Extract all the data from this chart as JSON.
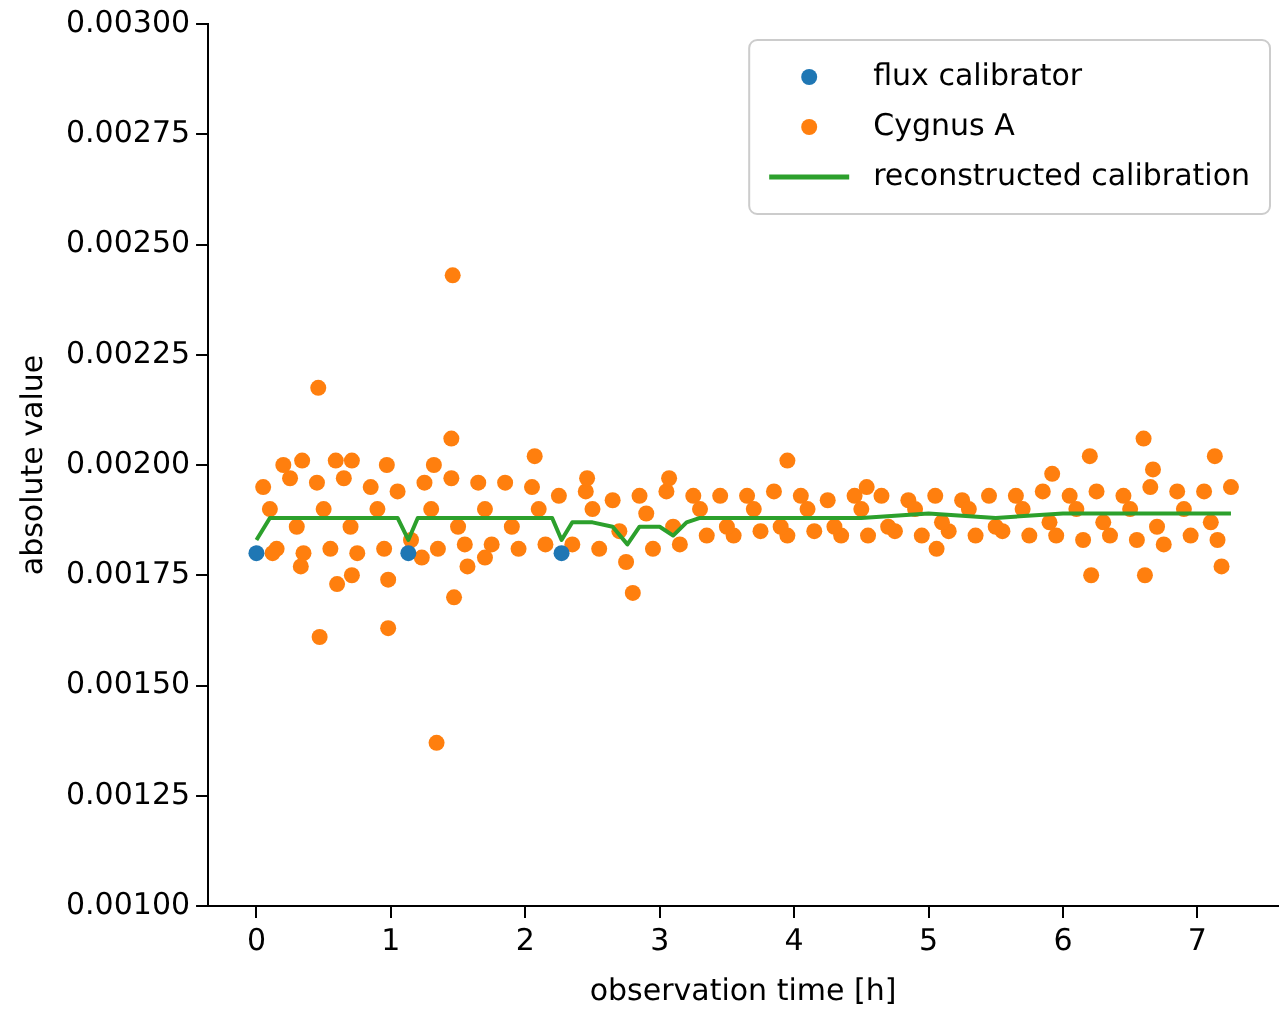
{
  "chart_data": {
    "type": "scatter",
    "xlabel": "observation time [h]",
    "ylabel": "absolute value",
    "xlim": [
      -0.36,
      7.6
    ],
    "xticks": [
      0,
      1,
      2,
      3,
      4,
      5,
      6,
      7
    ],
    "ylim": [
      0.001,
      0.003
    ],
    "yticks": [
      {
        "value": 0.001,
        "label": "0.00100"
      },
      {
        "value": 0.00125,
        "label": "0.00125"
      },
      {
        "value": 0.0015,
        "label": "0.00150"
      },
      {
        "value": 0.00175,
        "label": "0.00175"
      },
      {
        "value": 0.002,
        "label": "0.00200"
      },
      {
        "value": 0.00225,
        "label": "0.00225"
      },
      {
        "value": 0.0025,
        "label": "0.00250"
      },
      {
        "value": 0.00275,
        "label": "0.00275"
      },
      {
        "value": 0.003,
        "label": "0.00300"
      }
    ],
    "grid": false,
    "legend": "top right",
    "series": [
      {
        "name": "flux calibrator",
        "marker": "circle",
        "color": "#1f77b4",
        "x": [
          0,
          1.13,
          2.27
        ],
        "values": [
          0.0018,
          0.0018,
          0.0018
        ]
      },
      {
        "name": "Cygnus A",
        "marker": "circle",
        "color": "#ff7f0e",
        "x": [
          0.05,
          0.25,
          0.45,
          0.65,
          0.85,
          1.05,
          1.25,
          1.45,
          1.65,
          1.85,
          2.05,
          2.25,
          2.45,
          2.65,
          2.85,
          3.05,
          3.25,
          3.45,
          3.65,
          3.85,
          4.05,
          4.25,
          4.45,
          4.65,
          4.85,
          5.05,
          5.25,
          5.45,
          5.65,
          5.85,
          6.05,
          6.25,
          6.45,
          6.65,
          6.85,
          7.05,
          7.25,
          0.15,
          0.35,
          0.55,
          0.75,
          0.95,
          1.15,
          1.35,
          1.55,
          1.75,
          1.95,
          2.15,
          2.35,
          2.55,
          2.75,
          2.95,
          3.15,
          3.35,
          3.55,
          3.75,
          3.95,
          4.15,
          4.35,
          4.55,
          4.75,
          4.95,
          5.15,
          5.35,
          5.55,
          5.75,
          5.95,
          6.15,
          6.35,
          6.55,
          6.75,
          6.95,
          7.15,
          0.1,
          0.5,
          0.9,
          1.3,
          1.7,
          2.1,
          2.5,
          2.9,
          3.3,
          3.7,
          4.1,
          4.5,
          4.9,
          5.3,
          5.7,
          6.1,
          6.5,
          6.9,
          0.3,
          0.7,
          1.5,
          1.9,
          2.7,
          3.1,
          3.5,
          3.9,
          4.3,
          4.7,
          5.1,
          5.5,
          5.9,
          6.3,
          6.7,
          7.1,
          0.46,
          1.46,
          1.45,
          2.07,
          0.47,
          0.98,
          1.47,
          1.34,
          0.33,
          0.6,
          0.71,
          0.98,
          0.2,
          0.34,
          0.59,
          0.71,
          0.97,
          1.32,
          1.7,
          1.57,
          1.23,
          0.12,
          2.8,
          2.46,
          3.07,
          3.95,
          6.6,
          6.2,
          6.67,
          7.13,
          6.21,
          6.61,
          7.18,
          5.06,
          5.92,
          4.54
        ],
        "values": [
          0.00195,
          0.00197,
          0.00196,
          0.00197,
          0.00195,
          0.00194,
          0.00196,
          0.00197,
          0.00196,
          0.00196,
          0.00195,
          0.00193,
          0.00194,
          0.00192,
          0.00193,
          0.00194,
          0.00193,
          0.00193,
          0.00193,
          0.00194,
          0.00193,
          0.00192,
          0.00193,
          0.00193,
          0.00192,
          0.00193,
          0.00192,
          0.00193,
          0.00193,
          0.00194,
          0.00193,
          0.00194,
          0.00193,
          0.00195,
          0.00194,
          0.00194,
          0.00195,
          0.00181,
          0.0018,
          0.00181,
          0.0018,
          0.00181,
          0.00183,
          0.00181,
          0.00182,
          0.00182,
          0.00181,
          0.00182,
          0.00182,
          0.00181,
          0.00178,
          0.00181,
          0.00182,
          0.00184,
          0.00184,
          0.00185,
          0.00184,
          0.00185,
          0.00184,
          0.00184,
          0.00185,
          0.00184,
          0.00185,
          0.00184,
          0.00185,
          0.00184,
          0.00184,
          0.00183,
          0.00184,
          0.00183,
          0.00182,
          0.00184,
          0.00183,
          0.0019,
          0.0019,
          0.0019,
          0.0019,
          0.0019,
          0.0019,
          0.0019,
          0.00189,
          0.0019,
          0.0019,
          0.0019,
          0.0019,
          0.0019,
          0.0019,
          0.0019,
          0.0019,
          0.0019,
          0.0019,
          0.00186,
          0.00186,
          0.00186,
          0.00186,
          0.00185,
          0.00186,
          0.00186,
          0.00186,
          0.00186,
          0.00186,
          0.00187,
          0.00186,
          0.00187,
          0.00187,
          0.00186,
          0.00187,
          0.002175,
          0.00243,
          0.00206,
          0.00202,
          0.00161,
          0.00163,
          0.0017,
          0.00137,
          0.00177,
          0.00173,
          0.00175,
          0.00174,
          0.002,
          0.00201,
          0.00201,
          0.00201,
          0.002,
          0.002,
          0.00179,
          0.00177,
          0.00179,
          0.0018,
          0.00171,
          0.00197,
          0.00197,
          0.00201,
          0.00206,
          0.00202,
          0.00199,
          0.00202,
          0.00175,
          0.00175,
          0.00177,
          0.00181,
          0.00198,
          0.00195
        ]
      },
      {
        "name": "reconstructed calibration",
        "type": "line",
        "marker": "none",
        "color": "#2ca02c",
        "x": [
          0,
          0.1,
          0.3,
          0.6,
          0.9,
          1.05,
          1.13,
          1.2,
          1.4,
          1.7,
          2.0,
          2.2,
          2.27,
          2.35,
          2.5,
          2.65,
          2.76,
          2.85,
          3.0,
          3.1,
          3.2,
          3.3,
          3.6,
          4.0,
          4.5,
          5.0,
          5.5,
          6.0,
          6.5,
          7.0,
          7.25
        ],
        "values": [
          0.00183,
          0.00188,
          0.00188,
          0.00188,
          0.00188,
          0.00188,
          0.00183,
          0.00188,
          0.00188,
          0.00188,
          0.00188,
          0.00188,
          0.00183,
          0.00187,
          0.00187,
          0.00186,
          0.00182,
          0.00186,
          0.00186,
          0.00184,
          0.00187,
          0.00188,
          0.00188,
          0.00188,
          0.00188,
          0.00189,
          0.00188,
          0.00189,
          0.00189,
          0.00189,
          0.00189
        ]
      }
    ]
  }
}
